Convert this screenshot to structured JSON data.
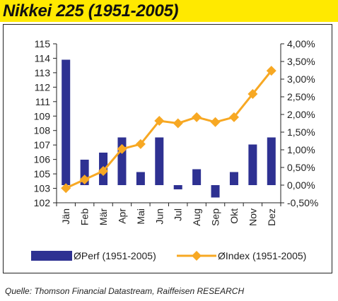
{
  "title": "Nikkei 225 (1951-2005)",
  "source": "Quelle: Thomson Financial Datastream, Raiffeisen RESEARCH",
  "colors": {
    "bar": "#2e3192",
    "line": "#f7a823",
    "title_bar": "#ffe900"
  },
  "chart_data": {
    "type": "bar",
    "categories": [
      "Jän",
      "Feb",
      "Mär",
      "Apr",
      "Mai",
      "Jun",
      "Jul",
      "Aug",
      "Sep",
      "Okt",
      "Nov",
      "Dez"
    ],
    "series": [
      {
        "name": "ØPerf (1951-2005)",
        "type": "bar",
        "axis": "right",
        "values": [
          3.55,
          0.72,
          0.92,
          1.35,
          0.37,
          1.35,
          -0.12,
          0.45,
          -0.35,
          0.37,
          1.15,
          1.35
        ]
      },
      {
        "name": "ØIndex (1951-2005)",
        "type": "line",
        "axis": "left",
        "values": [
          103.2,
          103.9,
          104.6,
          106.4,
          106.8,
          108.7,
          108.5,
          109.0,
          108.6,
          109.0,
          110.9,
          112.8
        ]
      }
    ],
    "left_axis": {
      "min": 102,
      "max": 115,
      "ticks": [
        "102",
        "103",
        "105",
        "106",
        "107",
        "108",
        "109",
        "111",
        "112",
        "113",
        "114",
        "115"
      ]
    },
    "right_axis": {
      "min": -0.5,
      "max": 4.0,
      "ticks": [
        "-0,50%",
        "0,00%",
        "0,50%",
        "1,00%",
        "1,50%",
        "2,00%",
        "2,50%",
        "3,00%",
        "3,50%",
        "4,00%"
      ]
    },
    "legend_position": "bottom",
    "grid": false
  }
}
